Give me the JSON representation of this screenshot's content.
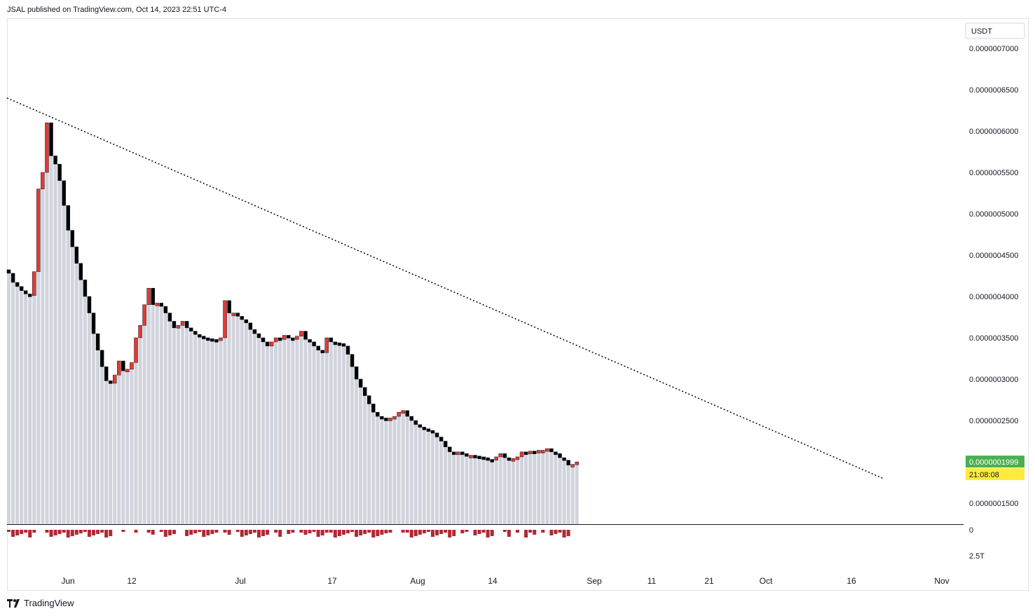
{
  "header": {
    "published": "JSAL published on TradingView.com, Oct 14, 2023 22:51 UTC-4"
  },
  "footer": {
    "brand": "TradingView"
  },
  "price_axis": {
    "currency": "USDT",
    "labels": [
      "0.0000007000",
      "0.0000006500",
      "0.0000006000",
      "0.0000005500",
      "0.0000005000",
      "0.0000004500",
      "0.0000004000",
      "0.0000003500",
      "0.0000003000",
      "0.0000002500",
      "0.0000001500"
    ],
    "last_price": "0.0000001999",
    "countdown": "21:08:08",
    "last_price_color": "#4caf50",
    "countdown_color": "#ffeb3b"
  },
  "volume_axis": {
    "labels": [
      "0",
      "2.5T"
    ]
  },
  "time_axis": {
    "labels": [
      "Jun",
      "12",
      "Jul",
      "17",
      "Aug",
      "14",
      "Sep",
      "11",
      "21",
      "Oct",
      "16",
      "Nov"
    ]
  },
  "colors": {
    "bar_fill": "#d1d4dc",
    "up_candle": "#e53935",
    "down_candle": "#000000",
    "volume": "#b22833",
    "trendline": "#000000"
  },
  "chart_data": {
    "type": "candlestick",
    "title": "",
    "price_unit": "USDT",
    "y_range": [
      1.2e-07,
      7.2e-07
    ],
    "trendline": {
      "start": {
        "date": "2023-05-22",
        "price": 6.4e-07
      },
      "end": {
        "date": "2023-10-19",
        "price": 1.8e-07
      },
      "style": "dotted"
    },
    "closes": [
      4.28e-07,
      4.17e-07,
      4.12e-07,
      4.07e-07,
      4.03e-07,
      4.01e-07,
      4.3e-07,
      5.3e-07,
      5.5e-07,
      6.1e-07,
      5.7e-07,
      5.6e-07,
      5.4e-07,
      5.1e-07,
      4.8e-07,
      4.6e-07,
      4.4e-07,
      4.2e-07,
      4e-07,
      3.8e-07,
      3.55e-07,
      3.35e-07,
      3.15e-07,
      2.98e-07,
      2.95e-07,
      3.05e-07,
      3.22e-07,
      3.1e-07,
      3.12e-07,
      3.2e-07,
      3.5e-07,
      3.65e-07,
      3.9e-07,
      4.1e-07,
      3.9e-07,
      3.92e-07,
      3.88e-07,
      3.8e-07,
      3.7e-07,
      3.62e-07,
      3.65e-07,
      3.7e-07,
      3.62e-07,
      3.58e-07,
      3.54e-07,
      3.52e-07,
      3.5e-07,
      3.49e-07,
      3.48e-07,
      3.47e-07,
      3.5e-07,
      3.95e-07,
      3.8e-07,
      3.8e-07,
      3.76e-07,
      3.72e-07,
      3.68e-07,
      3.6e-07,
      3.55e-07,
      3.5e-07,
      3.45e-07,
      3.4e-07,
      3.45e-07,
      3.5e-07,
      3.48e-07,
      3.53e-07,
      3.5e-07,
      3.48e-07,
      3.52e-07,
      3.58e-07,
      3.48e-07,
      3.45e-07,
      3.4e-07,
      3.35e-07,
      3.32e-07,
      3.5e-07,
      3.45e-07,
      3.44e-07,
      3.43e-07,
      3.4e-07,
      3.3e-07,
      3.15e-07,
      3e-07,
      2.9e-07,
      2.8e-07,
      2.7e-07,
      2.6e-07,
      2.55e-07,
      2.53e-07,
      2.52e-07,
      2.53e-07,
      2.55e-07,
      2.6e-07,
      2.62e-07,
      2.55e-07,
      2.5e-07,
      2.45e-07,
      2.42e-07,
      2.4e-07,
      2.38e-07,
      2.35e-07,
      2.3e-07,
      2.25e-07,
      2.18e-07,
      2.12e-07,
      2.1e-07,
      2.12e-07,
      2.1e-07,
      2.08e-07,
      2.08e-07,
      2.07e-07,
      2.06e-07,
      2.05e-07,
      2.03e-07,
      2.02e-07,
      2.06e-07,
      2.1e-07,
      2.05e-07,
      2.04e-07,
      2.04e-07,
      2.06e-07,
      2.12e-07,
      2.1e-07,
      2.13e-07,
      2.12e-07,
      2.14e-07,
      2.14e-07,
      2.16e-07,
      2.12e-07,
      2.1e-07,
      2.05e-07,
      2.02e-07,
      1.96e-07,
      1.97e-07,
      1.999e-07
    ]
  }
}
